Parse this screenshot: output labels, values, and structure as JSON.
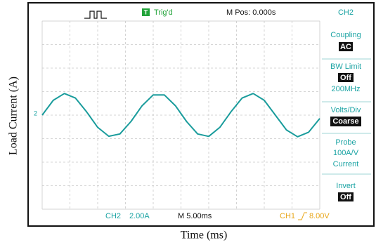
{
  "chart_data": {
    "type": "line",
    "x_label": "Time (ms)",
    "y_label": "Load Current (A)",
    "x": [
      0,
      2,
      4,
      6,
      8,
      10,
      12,
      14,
      16,
      18,
      20,
      22,
      24,
      26,
      28,
      30,
      32,
      34,
      36,
      38,
      40,
      42,
      44,
      46,
      48,
      50
    ],
    "values": [
      0,
      1.26,
      1.84,
      1.45,
      0.28,
      -1.04,
      -1.8,
      -1.6,
      -0.54,
      0.8,
      1.72,
      1.72,
      0.8,
      -0.54,
      -1.6,
      -1.81,
      -1.04,
      0.28,
      1.45,
      1.84,
      1.26,
      0,
      -1.26,
      -1.84,
      -1.45,
      -0.28
    ],
    "color": "#1a9c9c",
    "xlim": [
      0,
      50
    ],
    "ylim": [
      -8,
      8
    ],
    "grid": true
  },
  "screen": {
    "trig_icon": "T",
    "trig_status": "Trig'd",
    "m_pos": "M Pos: 0.000s",
    "channel": "CH2",
    "marker": "2",
    "menu": [
      [
        "Coupling",
        "AC"
      ],
      [
        "BW Limit",
        "Off",
        "200MHz"
      ],
      [
        "Volts/Div",
        "Coarse"
      ],
      [
        "Probe",
        "100A/V",
        "Current"
      ],
      [
        "Invert",
        "Off"
      ]
    ],
    "status": {
      "ch2": "CH2",
      "ch2_scale": "2.00A",
      "timebase": "M 5.00ms",
      "ch1": "CH1",
      "ch1_scale": "8.00V"
    }
  }
}
